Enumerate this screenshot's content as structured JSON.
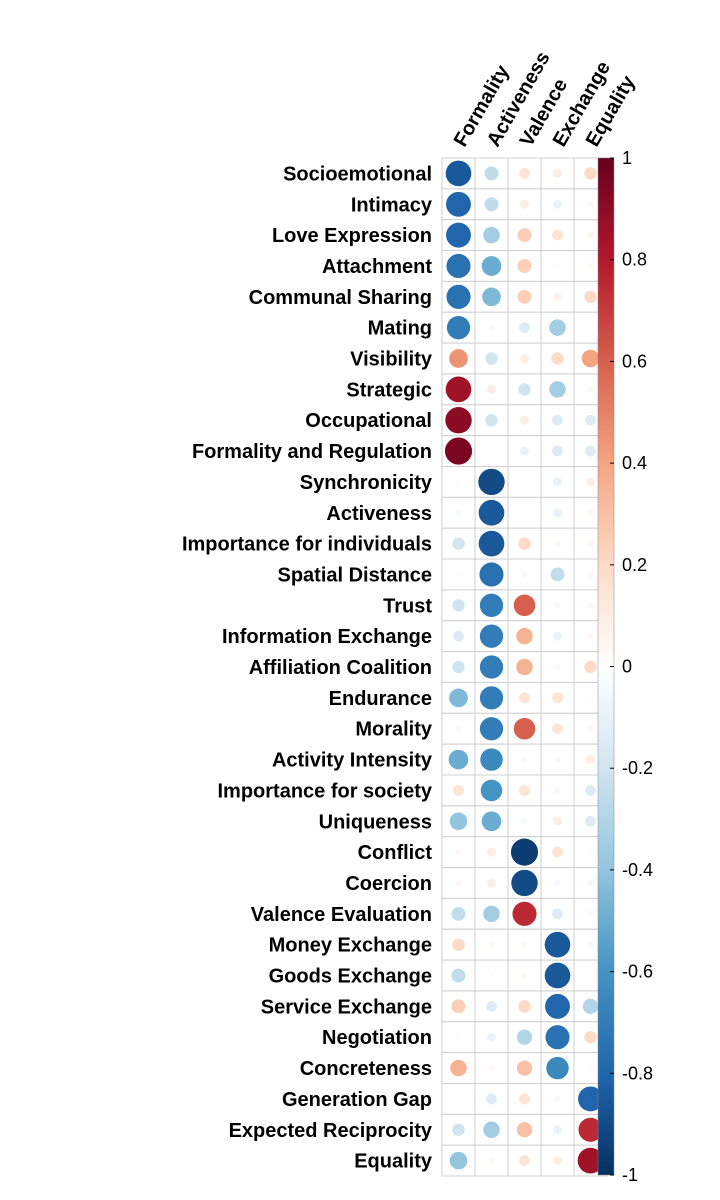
{
  "chart_data": {
    "type": "heatmap",
    "style": "correlation circles",
    "columns": [
      "Formality",
      "Activeness",
      "Valence",
      "Exchange",
      "Equality"
    ],
    "rows": [
      "Socioemotional",
      "Intimacy",
      "Love Expression",
      "Attachment",
      "Communal Sharing",
      "Mating",
      "Visibility",
      "Strategic",
      "Occupational",
      "Formality and Regulation",
      "Synchronicity",
      "Activeness",
      "Importance for individuals",
      "Spatial Distance",
      "Trust",
      "Information Exchange",
      "Affiliation Coalition",
      "Endurance",
      "Morality",
      "Activity Intensity",
      "Importance for society",
      "Uniqueness",
      "Conflict",
      "Coercion",
      "Valence Evaluation",
      "Money Exchange",
      "Goods Exchange",
      "Service Exchange",
      "Negotiation",
      "Concreteness",
      "Generation Gap",
      "Expected Reciprocity",
      "Equality"
    ],
    "values": [
      [
        -0.85,
        -0.25,
        0.15,
        0.1,
        0.2
      ],
      [
        -0.8,
        -0.25,
        0.1,
        -0.1,
        0.05
      ],
      [
        -0.8,
        -0.35,
        0.25,
        0.15,
        0.05
      ],
      [
        -0.75,
        -0.5,
        0.25,
        0.02,
        0.05
      ],
      [
        -0.75,
        -0.45,
        0.25,
        0.08,
        0.2
      ],
      [
        -0.7,
        0.05,
        -0.15,
        -0.35,
        0.02
      ],
      [
        0.45,
        -0.2,
        0.1,
        0.2,
        0.4
      ],
      [
        0.85,
        0.1,
        -0.2,
        -0.35,
        0.05
      ],
      [
        0.9,
        -0.2,
        0.1,
        -0.15,
        -0.15
      ],
      [
        0.95,
        0.0,
        -0.1,
        -0.15,
        -0.15
      ],
      [
        0.02,
        -0.9,
        0.0,
        -0.1,
        0.1
      ],
      [
        -0.05,
        -0.85,
        0.0,
        -0.1,
        0.05
      ],
      [
        -0.2,
        -0.85,
        0.2,
        0.05,
        0.05
      ],
      [
        0.02,
        -0.75,
        0.05,
        -0.25,
        0.05
      ],
      [
        -0.2,
        -0.7,
        0.6,
        0.05,
        0.05
      ],
      [
        -0.15,
        -0.7,
        0.35,
        -0.1,
        0.05
      ],
      [
        -0.2,
        -0.7,
        0.35,
        0.05,
        0.2
      ],
      [
        -0.45,
        -0.7,
        0.15,
        0.15,
        0.02
      ],
      [
        0.05,
        -0.7,
        0.6,
        0.15,
        0.05
      ],
      [
        -0.5,
        -0.65,
        0.05,
        -0.05,
        0.1
      ],
      [
        0.15,
        -0.6,
        0.15,
        0.05,
        -0.15
      ],
      [
        -0.4,
        -0.5,
        -0.05,
        0.1,
        -0.15
      ],
      [
        0.05,
        0.1,
        -0.95,
        0.15,
        0.02
      ],
      [
        0.05,
        0.1,
        -0.9,
        -0.05,
        0.05
      ],
      [
        -0.25,
        -0.35,
        0.75,
        -0.15,
        0.05
      ],
      [
        0.2,
        0.05,
        0.05,
        -0.85,
        -0.05
      ],
      [
        -0.25,
        0.02,
        0.05,
        -0.85,
        0.02
      ],
      [
        0.25,
        -0.15,
        0.2,
        -0.8,
        -0.3
      ],
      [
        0.02,
        -0.1,
        -0.3,
        -0.75,
        0.2
      ],
      [
        0.35,
        0.05,
        0.3,
        -0.65,
        0.02
      ],
      [
        0.02,
        -0.15,
        0.15,
        0.05,
        -0.8
      ],
      [
        -0.2,
        -0.35,
        0.3,
        -0.1,
        0.75
      ],
      [
        -0.4,
        0.05,
        0.15,
        0.1,
        0.85
      ]
    ],
    "scale": {
      "min": -1,
      "max": 1,
      "ticks": [
        -1,
        -0.8,
        -0.6,
        -0.4,
        -0.2,
        0,
        0.2,
        0.4,
        0.6,
        0.8,
        1
      ],
      "tick_labels": [
        "-1",
        "-0.8",
        "-0.6",
        "-0.4",
        "-0.2",
        "0",
        "0.2",
        "0.4",
        "0.6",
        "0.8",
        "1"
      ],
      "colors": [
        "#053061",
        "#2166AC",
        "#4393C3",
        "#92C5DE",
        "#D1E5F0",
        "#FFFFFF",
        "#FDDBC7",
        "#F4A582",
        "#D6604D",
        "#B2182B",
        "#67001F"
      ]
    },
    "grid": true,
    "legend": "right",
    "title": "",
    "xlabel": "",
    "ylabel": ""
  }
}
